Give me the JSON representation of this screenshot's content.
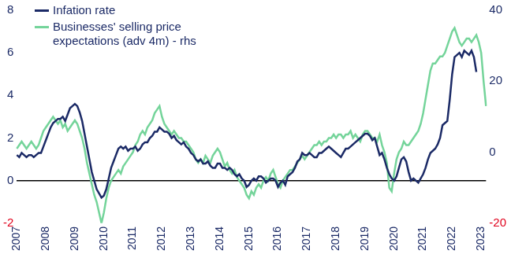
{
  "chart_data": {
    "type": "line",
    "categories": [
      "2007",
      null,
      null,
      null,
      null,
      null,
      null,
      null,
      null,
      null,
      null,
      null,
      "2008",
      null,
      null,
      null,
      null,
      null,
      null,
      null,
      null,
      null,
      null,
      null,
      "2009",
      null,
      null,
      null,
      null,
      null,
      null,
      null,
      null,
      null,
      null,
      null,
      "2010",
      null,
      null,
      null,
      null,
      null,
      null,
      null,
      null,
      null,
      null,
      null,
      "2011",
      null,
      null,
      null,
      null,
      null,
      null,
      null,
      null,
      null,
      null,
      null,
      "2012",
      null,
      null,
      null,
      null,
      null,
      null,
      null,
      null,
      null,
      null,
      null,
      "2013",
      null,
      null,
      null,
      null,
      null,
      null,
      null,
      null,
      null,
      null,
      null,
      "2014",
      null,
      null,
      null,
      null,
      null,
      null,
      null,
      null,
      null,
      null,
      null,
      "2015",
      null,
      null,
      null,
      null,
      null,
      null,
      null,
      null,
      null,
      null,
      null,
      "2016",
      null,
      null,
      null,
      null,
      null,
      null,
      null,
      null,
      null,
      null,
      null,
      "2017",
      null,
      null,
      null,
      null,
      null,
      null,
      null,
      null,
      null,
      null,
      null,
      "2018",
      null,
      null,
      null,
      null,
      null,
      null,
      null,
      null,
      null,
      null,
      null,
      "2019",
      null,
      null,
      null,
      null,
      null,
      null,
      null,
      null,
      null,
      null,
      null,
      "2020",
      null,
      null,
      null,
      null,
      null,
      null,
      null,
      null,
      null,
      null,
      null,
      "2021",
      null,
      null,
      null,
      null,
      null,
      null,
      null,
      null,
      null,
      null,
      null,
      "2022",
      null,
      null,
      null,
      null,
      null,
      null,
      null,
      null,
      null,
      null,
      null,
      "2023",
      null,
      null
    ],
    "series": [
      {
        "name": "Infation rate",
        "color": "#1b2a66",
        "values": [
          1.2,
          1.1,
          1.3,
          1.2,
          1.1,
          1.2,
          1.2,
          1.1,
          1.2,
          1.3,
          1.3,
          1.6,
          1.9,
          2.2,
          2.5,
          2.7,
          2.8,
          2.9,
          2.9,
          3.0,
          2.8,
          3.1,
          3.4,
          3.5,
          3.6,
          3.5,
          3.2,
          2.8,
          2.2,
          1.6,
          1.0,
          0.4,
          0.0,
          -0.4,
          -0.6,
          -0.8,
          -0.7,
          -0.4,
          0.1,
          0.6,
          0.9,
          1.2,
          1.5,
          1.6,
          1.5,
          1.6,
          1.4,
          1.5,
          1.5,
          1.6,
          1.4,
          1.5,
          1.7,
          1.8,
          1.8,
          2.0,
          2.1,
          2.3,
          2.3,
          2.5,
          2.4,
          2.3,
          2.3,
          2.2,
          2.0,
          2.1,
          1.9,
          1.8,
          1.7,
          1.8,
          1.6,
          1.5,
          1.3,
          1.2,
          1.0,
          0.9,
          1.0,
          0.8,
          0.8,
          0.9,
          0.7,
          0.6,
          0.6,
          0.8,
          0.8,
          0.6,
          0.6,
          0.5,
          0.6,
          0.5,
          0.3,
          0.2,
          0.3,
          0.1,
          0.0,
          -0.3,
          -0.2,
          0.0,
          0.1,
          0.0,
          0.2,
          0.2,
          0.1,
          -0.1,
          0.0,
          0.1,
          0.1,
          0.0,
          -0.3,
          -0.1,
          0.0,
          -0.2,
          0.2,
          0.3,
          0.4,
          0.6,
          0.9,
          1.0,
          1.3,
          1.2,
          1.2,
          1.3,
          1.2,
          1.1,
          1.1,
          1.3,
          1.3,
          1.4,
          1.5,
          1.6,
          1.5,
          1.4,
          1.3,
          1.2,
          1.1,
          1.3,
          1.5,
          1.5,
          1.6,
          1.7,
          1.8,
          1.9,
          2.0,
          2.1,
          2.2,
          2.2,
          2.1,
          1.9,
          2.0,
          1.6,
          1.2,
          1.3,
          1.0,
          0.6,
          0.3,
          0.1,
          0.0,
          0.2,
          0.6,
          1.0,
          1.1,
          0.9,
          0.4,
          0.0,
          0.1,
          0.0,
          -0.1,
          0.1,
          0.3,
          0.6,
          1.0,
          1.3,
          1.4,
          1.5,
          1.7,
          2.0,
          2.6,
          2.7,
          2.8,
          3.8,
          5.0,
          5.8,
          5.9,
          6.0,
          5.8,
          6.1,
          6.0,
          5.9,
          6.1,
          5.8,
          5.1,
          null,
          null,
          null,
          null
        ]
      },
      {
        "name": "Businesses' selling price expectations (adv 4m) - rhs",
        "color": "#74d49a",
        "axis": "y2",
        "values": [
          1,
          2,
          3,
          2,
          1,
          2,
          3,
          2,
          1,
          2,
          4,
          6,
          7,
          8,
          9,
          10,
          9,
          8,
          9,
          7,
          8,
          6,
          7,
          8,
          9,
          8,
          6,
          4,
          1,
          -3,
          -6,
          -9,
          -12,
          -14,
          -17,
          -20,
          -17,
          -13,
          -10,
          -8,
          -7,
          -6,
          -5,
          -6,
          -4,
          -3,
          -2,
          -1,
          0,
          2,
          3,
          5,
          6,
          5,
          7,
          8,
          9,
          11,
          12,
          13,
          10,
          8,
          7,
          6,
          5,
          6,
          5,
          4,
          4,
          3,
          3,
          2,
          1,
          0,
          -2,
          -3,
          -2,
          -3,
          -1,
          -2,
          -3,
          -1,
          0,
          1,
          0,
          -2,
          -4,
          -3,
          -5,
          -6,
          -5,
          -7,
          -8,
          -9,
          -10,
          -12,
          -13,
          -11,
          -12,
          -10,
          -9,
          -10,
          -8,
          -7,
          -8,
          -6,
          -5,
          -7,
          -9,
          -10,
          -8,
          -7,
          -6,
          -5,
          -5,
          -4,
          -3,
          -2,
          -1,
          -2,
          -1,
          0,
          1,
          2,
          2,
          3,
          2,
          3,
          3,
          4,
          4,
          5,
          4,
          5,
          5,
          4,
          5,
          5,
          6,
          4,
          5,
          4,
          3,
          5,
          6,
          6,
          5,
          4,
          4,
          3,
          5,
          2,
          0,
          -3,
          -10,
          -11,
          -6,
          -2,
          0,
          1,
          3,
          2,
          2,
          3,
          4,
          5,
          6,
          8,
          11,
          15,
          19,
          23,
          25,
          25,
          26,
          27,
          27,
          28,
          30,
          32,
          34,
          35,
          33,
          31,
          30,
          31,
          32,
          32,
          31,
          32,
          33,
          31,
          28,
          20,
          13
        ]
      }
    ],
    "ylim": [
      -2,
      8
    ],
    "yticks": [
      -2,
      0,
      2,
      4,
      6,
      8
    ],
    "y2lim": [
      -20,
      40
    ],
    "y2ticks": [
      -20,
      0,
      20,
      40
    ],
    "grid": false,
    "legend": "upper left"
  }
}
